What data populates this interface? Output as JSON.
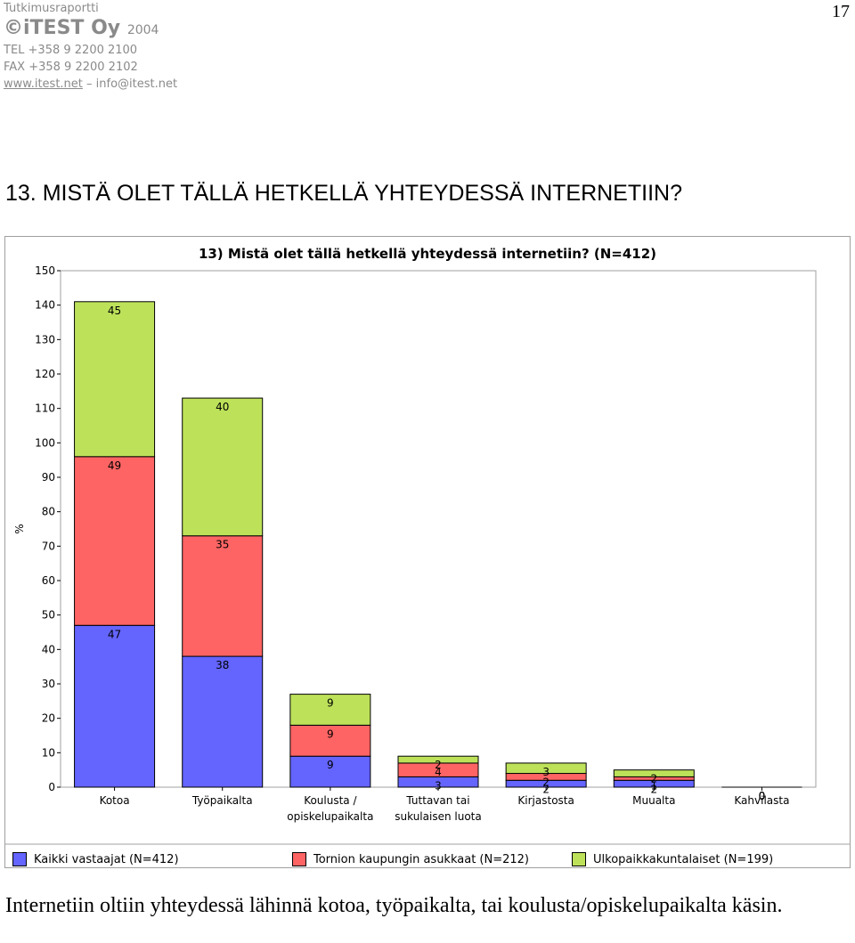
{
  "header": {
    "doc_type": "Tutkimusraportti",
    "brand": "©iTEST Oy",
    "year": "2004",
    "tel": "TEL +358 9 2200 2100",
    "fax": "FAX +358 9 2200 2102",
    "url": "www.itest.net",
    "separator": "–",
    "email": "info@itest.net"
  },
  "page_number": "17",
  "section_title": "13. MISTÄ OLET TÄLLÄ HETKELLÄ YHTEYDESSÄ INTERNETIIN?",
  "caption": "Internetiin oltiin yhteydessä lähinnä kotoa, työpaikalta, tai koulusta/opiskelupaikalta käsin.",
  "chart_data": {
    "type": "bar",
    "stacked": true,
    "title": "13) Mistä olet tällä hetkellä yhteydessä internetiin? (N=412)",
    "xlabel": "",
    "ylabel": "%",
    "ylim": [
      0,
      150
    ],
    "yticks": [
      0,
      10,
      20,
      30,
      40,
      50,
      60,
      70,
      80,
      90,
      100,
      110,
      120,
      130,
      140,
      150
    ],
    "grid": false,
    "legend_position": "bottom",
    "categories": [
      [
        "Kotoa"
      ],
      [
        "Työpaikalta"
      ],
      [
        "Koulusta /",
        "opiskelupaikalta"
      ],
      [
        "Tuttavan tai",
        "sukulaisen luota"
      ],
      [
        "Kirjastosta"
      ],
      [
        "Muualta"
      ],
      [
        "Kahvilasta"
      ]
    ],
    "series": [
      {
        "name": "Kaikki vastaajat (N=412)",
        "color": "#6464ff",
        "values": [
          47,
          38,
          9,
          3,
          2,
          2,
          0
        ]
      },
      {
        "name": "Tornion kaupungin asukkaat (N=212)",
        "color": "#ff6464",
        "values": [
          49,
          35,
          9,
          4,
          2,
          1,
          0
        ]
      },
      {
        "name": "Ulkopaikkakuntalaiset (N=199)",
        "color": "#bde25a",
        "values": [
          45,
          40,
          9,
          2,
          3,
          2,
          0
        ]
      }
    ]
  }
}
